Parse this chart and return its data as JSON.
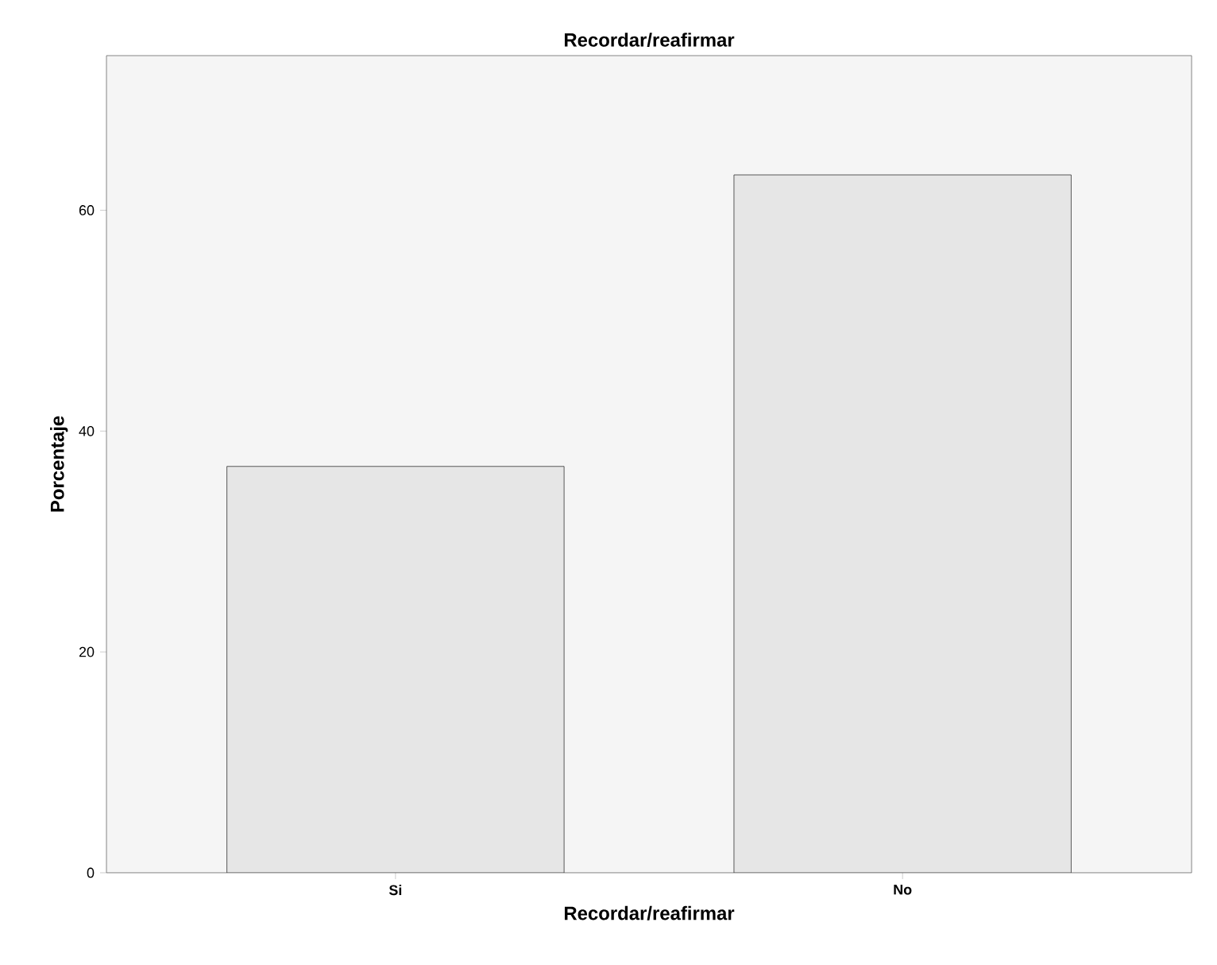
{
  "chart_data": {
    "type": "bar",
    "title": "Recordar/reafirmar",
    "xlabel": "Recordar/reafirmar",
    "ylabel": "Porcentaje",
    "categories": [
      "Si",
      "No"
    ],
    "values": [
      36.8,
      63.2
    ],
    "color": "#e6e6e6",
    "ylim": [
      0,
      74
    ],
    "yticks": [
      0,
      20,
      40,
      60
    ]
  }
}
